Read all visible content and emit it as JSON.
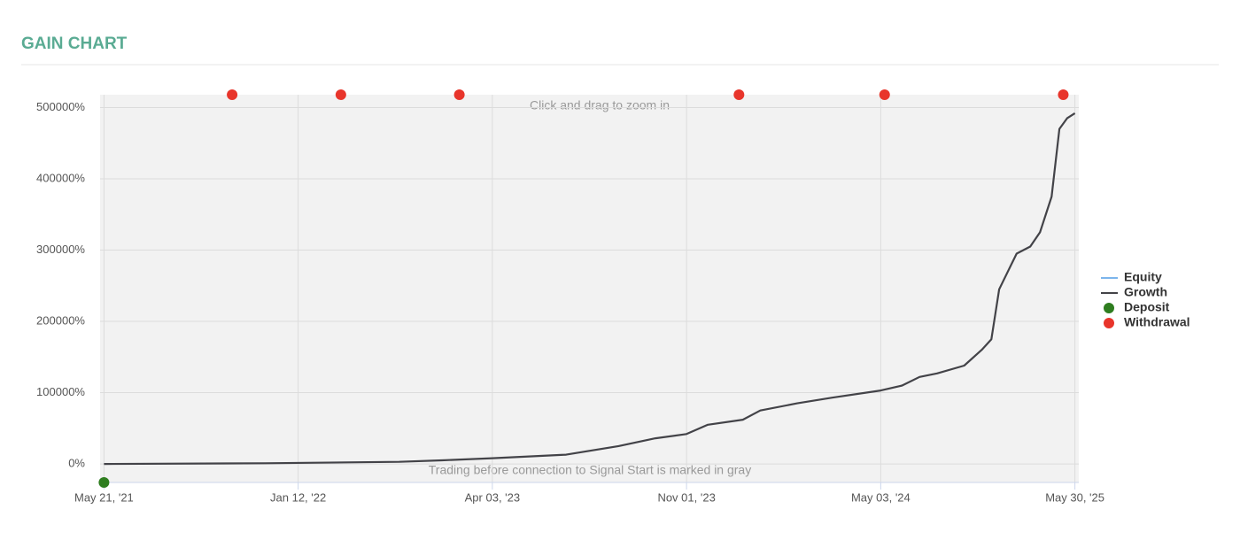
{
  "title": "GAIN CHART",
  "chart_data": {
    "type": "line",
    "annotations": [
      "Click and drag to zoom in",
      "Trading before connection to Signal Start is marked in gray"
    ],
    "xlim": [
      -2,
      502
    ],
    "xticks": [
      {
        "value": 0,
        "label": "May 21, '21"
      },
      {
        "value": 100,
        "label": "Jan 12, '22"
      },
      {
        "value": 200,
        "label": "Apr 03, '23"
      },
      {
        "value": 300,
        "label": "Nov 01, '23"
      },
      {
        "value": 400,
        "label": "May 03, '24"
      },
      {
        "value": 500,
        "label": "May 30, '25"
      }
    ],
    "ylim": [
      -26000,
      518000
    ],
    "yticks": [
      {
        "value": 0,
        "label": "0%"
      },
      {
        "value": 100000,
        "label": "100000%"
      },
      {
        "value": 200000,
        "label": "200000%"
      },
      {
        "value": 300000,
        "label": "300000%"
      },
      {
        "value": 400000,
        "label": "400000%"
      },
      {
        "value": 500000,
        "label": "500000%"
      }
    ],
    "grid": true,
    "series": [
      {
        "name": "Equity",
        "color": "#7cb5ec",
        "x": [
          0,
          500
        ],
        "values": [
          null,
          null
        ]
      },
      {
        "name": "Growth",
        "color": "#434348",
        "x": [
          0,
          83,
          152,
          174,
          200,
          238,
          265,
          284,
          300,
          311,
          329,
          338,
          357,
          375,
          400,
          411,
          420,
          429,
          443,
          452,
          457,
          461,
          470,
          477,
          482,
          488,
          492,
          496,
          500
        ],
        "values": [
          0,
          1000,
          3000,
          5000,
          8000,
          13000,
          25000,
          36000,
          42000,
          55000,
          62000,
          75000,
          85000,
          93000,
          103000,
          110000,
          122000,
          127000,
          138000,
          160000,
          175000,
          245000,
          295000,
          305000,
          325000,
          375000,
          470000,
          485000,
          492000
        ]
      }
    ],
    "events": [
      {
        "name": "Deposit",
        "color": "#2e7d1f",
        "x": [
          0
        ]
      },
      {
        "name": "Withdrawal",
        "color": "#e8352b",
        "x": [
          66,
          122,
          183,
          327,
          402,
          494
        ]
      }
    ]
  }
}
